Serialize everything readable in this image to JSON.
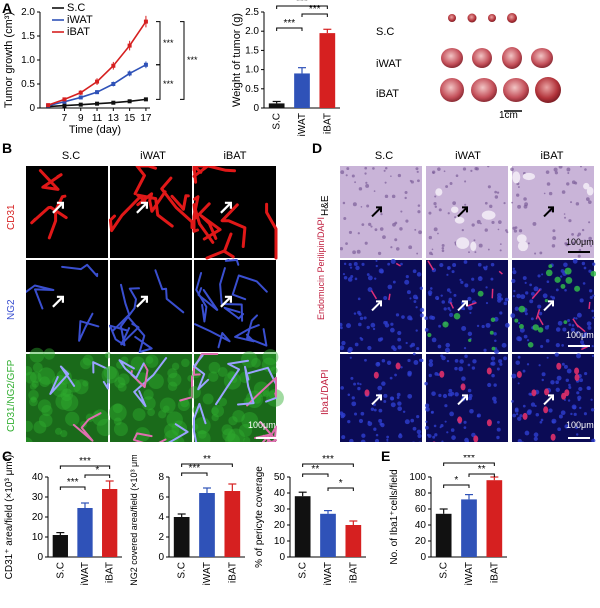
{
  "panels": {
    "A": "A",
    "B": "B",
    "C": "C",
    "D": "D",
    "E": "E"
  },
  "colors": {
    "sc": "#111111",
    "iwat": "#2f52b8",
    "ibat": "#d62020",
    "cd31": "#e01818",
    "ng2": "#3a4fd0",
    "gfp": "#2fae2f",
    "he": "#c9b4d8"
  },
  "groups": [
    "S.C",
    "iWAT",
    "iBAT"
  ],
  "panelA": {
    "growth": {
      "ylabel": "Tumor growth (cm³)",
      "xlabel": "Time (day)",
      "legend": [
        "S.C",
        "iWAT",
        "iBAT"
      ],
      "sig_labels": [
        "***",
        "***",
        "***"
      ]
    },
    "weight": {
      "ylabel": "Weight of tumor (g)",
      "sig_labels": [
        "***",
        "***",
        "***"
      ]
    },
    "photo": {
      "rows": [
        "S.C",
        "iWAT",
        "iBAT"
      ],
      "scale": "1cm"
    }
  },
  "panelB": {
    "columns": [
      "S.C",
      "iWAT",
      "iBAT"
    ],
    "rows": [
      "CD31",
      "NG2",
      "CD31/NG2/GFP"
    ],
    "scale": "100μm"
  },
  "panelD": {
    "columns": [
      "S.C",
      "iWAT",
      "iBAT"
    ],
    "rows": [
      "H&E",
      "Endomucin Perilipin/DAPI",
      "Iba1/DAPI"
    ],
    "scale": "100μm"
  },
  "panelC": {
    "cd31": {
      "ylabel": "CD31⁺ area/field (×10³ μm²)",
      "sig_labels": [
        "***",
        "***",
        "*"
      ]
    },
    "ng2": {
      "ylabel": "NG2 covered area/field (×10³ μm²)",
      "sig_labels": [
        "***",
        "**"
      ]
    },
    "pericyte": {
      "ylabel": "% of pericyte coverage",
      "sig_labels": [
        "***",
        "**",
        "*"
      ]
    }
  },
  "panelE": {
    "ylabel": "No. of Iba1⁺cells/field",
    "sig_labels": [
      "***",
      "**",
      "*"
    ]
  },
  "chart_data": [
    {
      "type": "line",
      "name": "tumor-growth",
      "ylabel": "Tumor growth (cm³)",
      "xlabel": "Time (day)",
      "x": [
        5,
        7,
        9,
        11,
        13,
        15,
        17
      ],
      "xticks": [
        7,
        9,
        11,
        13,
        15,
        17
      ],
      "xtick_labels": [
        "7",
        "9",
        "11",
        "13",
        "15",
        "17"
      ],
      "yticks": [
        0,
        0.5,
        1.0,
        1.5,
        2.0
      ],
      "ytick_labels": [
        "0",
        "0.5",
        "1.0",
        "1.5",
        "2.0"
      ],
      "ylim": [
        0,
        2.0
      ],
      "xlim": [
        4,
        17.5
      ],
      "series": [
        {
          "name": "S.C",
          "values": [
            0.03,
            0.05,
            0.07,
            0.09,
            0.11,
            0.14,
            0.18
          ],
          "errors": [
            0.01,
            0.01,
            0.01,
            0.02,
            0.02,
            0.02,
            0.02
          ]
        },
        {
          "name": "iWAT",
          "values": [
            0.05,
            0.13,
            0.22,
            0.33,
            0.5,
            0.72,
            0.9
          ],
          "errors": [
            0.02,
            0.03,
            0.03,
            0.04,
            0.05,
            0.06,
            0.07
          ]
        },
        {
          "name": "iBAT",
          "values": [
            0.06,
            0.18,
            0.32,
            0.55,
            0.88,
            1.3,
            1.8
          ],
          "errors": [
            0.02,
            0.03,
            0.05,
            0.07,
            0.08,
            0.1,
            0.12
          ]
        }
      ]
    },
    {
      "type": "bar",
      "name": "tumor-weight",
      "ylabel": "Weight of tumor (g)",
      "categories": [
        "S.C",
        "iWAT",
        "iBAT"
      ],
      "values": [
        0.12,
        0.9,
        1.95
      ],
      "errors": [
        0.05,
        0.15,
        0.1
      ],
      "ylim": [
        0,
        2.5
      ],
      "yticks": [
        0,
        0.5,
        1.0,
        1.5,
        2.0,
        2.5
      ],
      "ytick_labels": [
        "0",
        "0.5",
        "1.0",
        "1.5",
        "2.0",
        "2.5"
      ]
    },
    {
      "type": "bar",
      "name": "cd31-area",
      "ylabel": "CD31⁺ area/field (×10³ μm²)",
      "categories": [
        "S.C",
        "iWAT",
        "iBAT"
      ],
      "values": [
        11,
        24.5,
        34
      ],
      "errors": [
        1.2,
        2.5,
        4
      ],
      "ylim": [
        0,
        40
      ],
      "yticks": [
        0,
        10,
        20,
        30,
        40
      ],
      "ytick_labels": [
        "0",
        "10",
        "20",
        "30",
        "40"
      ]
    },
    {
      "type": "bar",
      "name": "ng2-area",
      "ylabel": "NG2 covered area/field (×10³ μm²)",
      "categories": [
        "S.C",
        "iWAT",
        "iBAT"
      ],
      "values": [
        4.0,
        6.4,
        6.6
      ],
      "errors": [
        0.3,
        0.5,
        0.7
      ],
      "ylim": [
        0,
        8
      ],
      "yticks": [
        0,
        2,
        4,
        6,
        8
      ],
      "ytick_labels": [
        "0",
        "2",
        "4",
        "6",
        "8"
      ]
    },
    {
      "type": "bar",
      "name": "pericyte-coverage",
      "ylabel": "% of pericyte coverage",
      "categories": [
        "S.C",
        "iWAT",
        "iBAT"
      ],
      "values": [
        38,
        27,
        20
      ],
      "errors": [
        2.5,
        2,
        2.5
      ],
      "ylim": [
        0,
        50
      ],
      "yticks": [
        0,
        10,
        20,
        30,
        40,
        50
      ],
      "ytick_labels": [
        "0",
        "10",
        "20",
        "30",
        "40",
        "50"
      ]
    },
    {
      "type": "bar",
      "name": "iba1-cells",
      "ylabel": "No. of Iba1⁺cells/field",
      "categories": [
        "S.C",
        "iWAT",
        "iBAT"
      ],
      "values": [
        54,
        72,
        96
      ],
      "errors": [
        6,
        6,
        4
      ],
      "ylim": [
        0,
        100
      ],
      "yticks": [
        0,
        20,
        40,
        60,
        80,
        100
      ],
      "ytick_labels": [
        "0",
        "20",
        "40",
        "60",
        "80",
        "100"
      ]
    }
  ]
}
